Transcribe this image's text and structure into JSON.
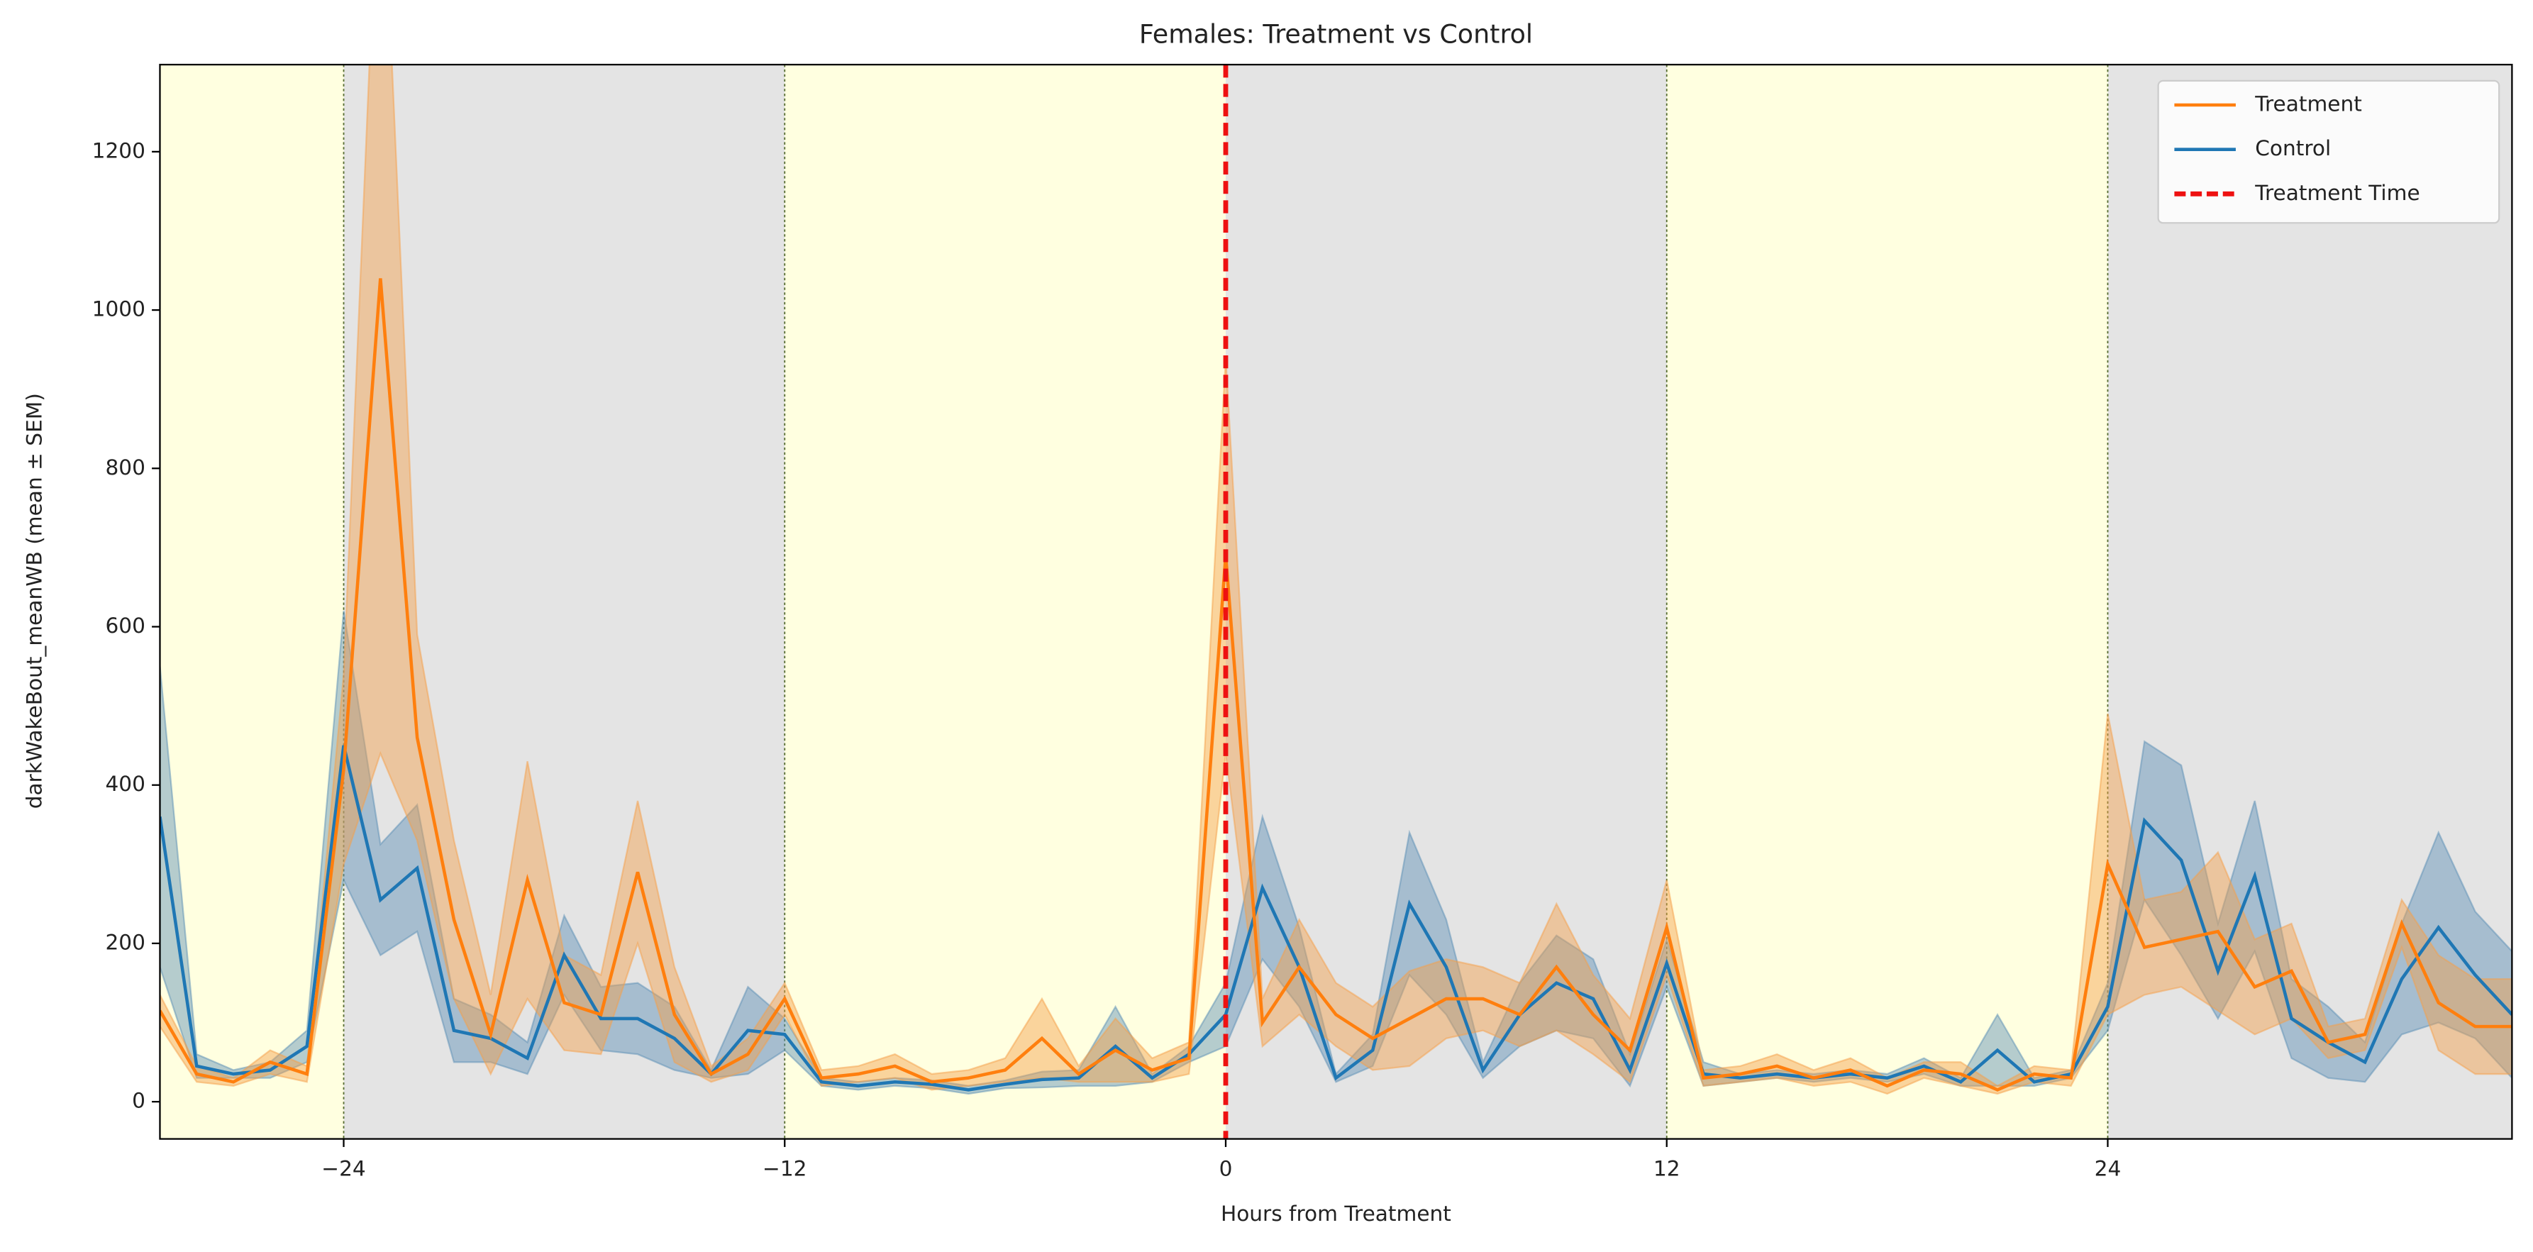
{
  "chart_data": {
    "type": "line",
    "title": "Females: Treatment vs Control",
    "xlabel": "Hours from Treatment",
    "ylabel": "darkWakeBout_meanWB (mean ± SEM)",
    "x": [
      -29,
      -28,
      -27,
      -26,
      -25,
      -24,
      -23,
      -22,
      -21,
      -20,
      -19,
      -18,
      -17,
      -16,
      -15,
      -14,
      -13,
      -12,
      -11,
      -10,
      -9,
      -8,
      -7,
      -6,
      -5,
      -4,
      -3,
      -2,
      -1,
      0,
      1,
      2,
      3,
      4,
      5,
      6,
      7,
      8,
      9,
      10,
      11,
      12,
      13,
      14,
      15,
      16,
      17,
      18,
      19,
      20,
      21,
      22,
      23,
      24,
      25,
      26,
      27,
      28,
      29,
      30,
      31,
      32,
      33,
      34,
      35
    ],
    "series": [
      {
        "name": "Treatment",
        "color": "#ff7f0e",
        "band_color": "#f5a04a",
        "values": [
          115,
          35,
          25,
          50,
          35,
          420,
          1040,
          460,
          230,
          85,
          280,
          125,
          110,
          290,
          110,
          35,
          60,
          130,
          30,
          35,
          45,
          25,
          30,
          40,
          80,
          35,
          65,
          40,
          55,
          690,
          100,
          170,
          110,
          80,
          105,
          130,
          130,
          110,
          170,
          110,
          65,
          220,
          30,
          35,
          45,
          30,
          40,
          20,
          40,
          35,
          15,
          35,
          30,
          300,
          195,
          205,
          215,
          145,
          165,
          75,
          85,
          225,
          125,
          95,
          95
        ],
        "sem": [
          20,
          10,
          5,
          15,
          10,
          120,
          600,
          130,
          100,
          50,
          150,
          60,
          50,
          90,
          60,
          10,
          20,
          20,
          10,
          10,
          15,
          10,
          10,
          15,
          50,
          10,
          40,
          15,
          20,
          250,
          30,
          60,
          40,
          40,
          60,
          50,
          40,
          40,
          80,
          50,
          40,
          60,
          10,
          10,
          15,
          10,
          15,
          10,
          10,
          15,
          5,
          10,
          10,
          190,
          60,
          60,
          100,
          60,
          60,
          20,
          20,
          30,
          60,
          60,
          60
        ]
      },
      {
        "name": "Control",
        "color": "#1f77b4",
        "band_color": "#5b8fb5",
        "values": [
          360,
          45,
          35,
          40,
          70,
          450,
          255,
          295,
          90,
          80,
          55,
          185,
          105,
          105,
          80,
          35,
          90,
          85,
          25,
          20,
          25,
          22,
          15,
          22,
          28,
          30,
          70,
          30,
          60,
          110,
          270,
          170,
          30,
          65,
          250,
          170,
          40,
          110,
          150,
          130,
          40,
          175,
          35,
          30,
          35,
          30,
          35,
          30,
          45,
          25,
          65,
          25,
          35,
          120,
          355,
          305,
          165,
          285,
          105,
          75,
          50,
          155,
          220,
          160,
          110
        ],
        "sem": [
          190,
          15,
          5,
          10,
          20,
          170,
          70,
          80,
          40,
          30,
          20,
          50,
          40,
          45,
          40,
          5,
          55,
          20,
          5,
          5,
          5,
          5,
          5,
          5,
          10,
          10,
          50,
          5,
          10,
          40,
          90,
          50,
          5,
          20,
          90,
          60,
          10,
          40,
          60,
          50,
          20,
          30,
          15,
          5,
          5,
          5,
          5,
          5,
          10,
          5,
          45,
          5,
          5,
          30,
          100,
          120,
          60,
          95,
          50,
          45,
          25,
          70,
          120,
          80,
          80
        ]
      }
    ],
    "treatment_time": {
      "name": "Treatment Time",
      "x": 0,
      "color": "#ee1111"
    },
    "light_periods": [
      [
        -29,
        -24
      ],
      [
        -12,
        0
      ],
      [
        12,
        24
      ]
    ],
    "dark_periods": [
      [
        -24,
        -12
      ],
      [
        0,
        12
      ],
      [
        24,
        35
      ]
    ],
    "light_color": "#ffffe0",
    "dark_color": "#e4e4e4",
    "xlim": [
      -29,
      35
    ],
    "xticks": [
      {
        "value": -24,
        "label": "−24"
      },
      {
        "value": -12,
        "label": "−12"
      },
      0,
      12,
      24
    ],
    "ylim": [
      -47,
      1310
    ],
    "yticks": [
      0,
      200,
      400,
      600,
      800,
      1000,
      1200
    ],
    "legend": "upper right",
    "grid": false
  }
}
